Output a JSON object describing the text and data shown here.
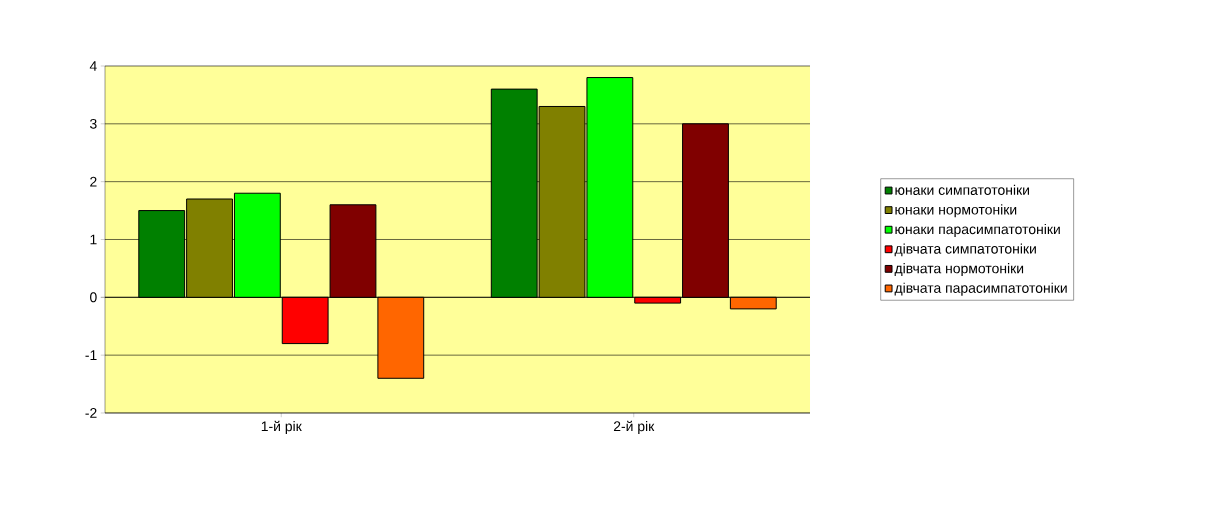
{
  "chart_data": {
    "type": "bar",
    "categories": [
      "1-й рік",
      "2-й рік"
    ],
    "series": [
      {
        "name": "юнаки симпатотоніки",
        "color": "#008000",
        "values": [
          1.5,
          3.6
        ]
      },
      {
        "name": "юнаки нормотоніки",
        "color": "#808000",
        "values": [
          1.7,
          3.3
        ]
      },
      {
        "name": "юнаки парасимпатотоніки",
        "color": "#00ff00",
        "values": [
          1.8,
          3.8
        ]
      },
      {
        "name": "дівчата симпатотоніки",
        "color": "#ff0000",
        "values": [
          -0.8,
          -0.1
        ]
      },
      {
        "name": "дівчата нормотоніки",
        "color": "#800000",
        "values": [
          1.6,
          3.0
        ]
      },
      {
        "name": "дівчата парасимпатотоніки",
        "color": "#ff6600",
        "values": [
          -1.4,
          -0.2
        ]
      }
    ],
    "ylim": [
      -2,
      4
    ],
    "yticks": [
      -2,
      -1,
      0,
      1,
      2,
      3,
      4
    ],
    "grid": "y",
    "legend": "right"
  }
}
